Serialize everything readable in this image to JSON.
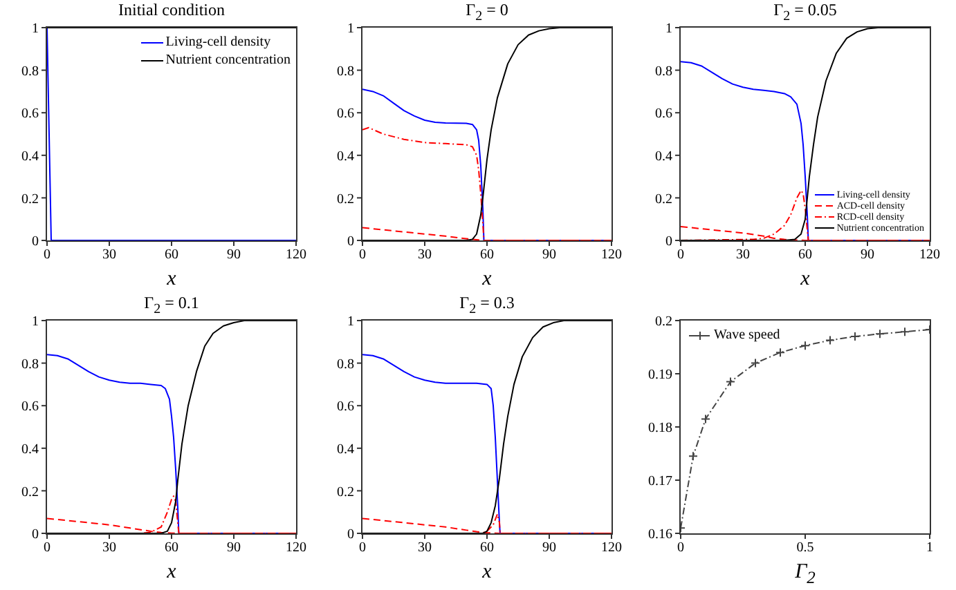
{
  "chart_data": [
    {
      "type": "line",
      "title": "Initial condition",
      "xlabel": "x",
      "xlim": [
        0,
        120
      ],
      "xticks": [
        0,
        30,
        60,
        90,
        120
      ],
      "ylim": [
        0,
        1
      ],
      "yticks": [
        0,
        0.2,
        0.4,
        0.6,
        0.8,
        1
      ],
      "legend": "top right",
      "line_style": "solid",
      "series": [
        {
          "name": "Living-cell density",
          "color": "#0000ff",
          "x": [
            0,
            1,
            2,
            120
          ],
          "values": [
            1,
            0.5,
            0,
            0
          ]
        },
        {
          "name": "Nutrient concentration",
          "color": "#000000",
          "x": [
            0,
            120
          ],
          "values": [
            1,
            1
          ]
        }
      ]
    },
    {
      "type": "line",
      "title": "Γ$_{2}$ = 0",
      "xlabel": "x",
      "xlim": [
        0,
        120
      ],
      "xticks": [
        0,
        30,
        60,
        90,
        120
      ],
      "ylim": [
        0,
        1
      ],
      "yticks": [
        0,
        0.2,
        0.4,
        0.6,
        0.8,
        1
      ],
      "series": [
        {
          "color": "#0000ff",
          "line_style": "solid",
          "x": [
            0,
            5,
            10,
            15,
            20,
            25,
            30,
            35,
            40,
            45,
            50,
            53,
            55,
            56,
            57,
            58,
            58.5,
            120
          ],
          "values": [
            0.71,
            0.7,
            0.68,
            0.645,
            0.61,
            0.585,
            0.565,
            0.555,
            0.552,
            0.551,
            0.55,
            0.545,
            0.52,
            0.47,
            0.35,
            0.15,
            0,
            0
          ]
        },
        {
          "color": "#ff0000",
          "line_style": "dashed",
          "x": [
            0,
            10,
            20,
            30,
            40,
            50,
            55,
            58,
            120
          ],
          "values": [
            0.06,
            0.05,
            0.04,
            0.03,
            0.02,
            0.008,
            0.003,
            0,
            0
          ]
        },
        {
          "color": "#ff0000",
          "line_style": "dotted",
          "x": [
            0,
            3,
            10,
            20,
            30,
            40,
            50,
            53,
            55,
            56,
            57,
            58,
            58.5,
            120
          ],
          "values": [
            0.52,
            0.53,
            0.5,
            0.475,
            0.46,
            0.455,
            0.45,
            0.44,
            0.4,
            0.33,
            0.22,
            0.08,
            0,
            0
          ]
        },
        {
          "color": "#000000",
          "line_style": "solid",
          "x": [
            0,
            50,
            53,
            55,
            57,
            58,
            60,
            62,
            65,
            70,
            75,
            80,
            85,
            90,
            95,
            120
          ],
          "values": [
            0,
            0,
            0.005,
            0.03,
            0.12,
            0.2,
            0.38,
            0.52,
            0.67,
            0.83,
            0.92,
            0.965,
            0.985,
            0.995,
            1,
            1
          ]
        }
      ]
    },
    {
      "type": "line",
      "title": "Γ$_{2}$ = 0.05",
      "xlabel": "x",
      "xlim": [
        0,
        120
      ],
      "xticks": [
        0,
        30,
        60,
        90,
        120
      ],
      "ylim": [
        0,
        1
      ],
      "yticks": [
        0,
        0.2,
        0.4,
        0.6,
        0.8,
        1
      ],
      "legend": "bottom right",
      "series": [
        {
          "name": "Living-cell density",
          "color": "#0000ff",
          "line_style": "solid",
          "x": [
            0,
            5,
            10,
            15,
            20,
            25,
            30,
            35,
            40,
            45,
            50,
            53,
            56,
            58,
            59,
            60,
            61,
            61.5,
            120
          ],
          "values": [
            0.84,
            0.835,
            0.82,
            0.79,
            0.76,
            0.735,
            0.72,
            0.71,
            0.705,
            0.7,
            0.69,
            0.675,
            0.64,
            0.55,
            0.45,
            0.3,
            0.12,
            0,
            0
          ]
        },
        {
          "name": "ACD-cell density",
          "color": "#ff0000",
          "line_style": "dashed",
          "x": [
            0,
            10,
            20,
            30,
            40,
            45,
            50,
            55,
            60,
            120
          ],
          "values": [
            0.065,
            0.055,
            0.045,
            0.035,
            0.02,
            0.01,
            0.005,
            0.002,
            0,
            0
          ]
        },
        {
          "name": "RCD-cell density",
          "color": "#ff0000",
          "line_style": "dotted",
          "x": [
            0,
            35,
            40,
            45,
            50,
            53,
            56,
            58,
            59,
            60,
            61,
            61.5,
            120
          ],
          "values": [
            0,
            0.005,
            0.01,
            0.03,
            0.07,
            0.12,
            0.2,
            0.235,
            0.22,
            0.15,
            0.05,
            0,
            0
          ]
        },
        {
          "name": "Nutrient concentration",
          "color": "#000000",
          "line_style": "solid",
          "x": [
            0,
            50,
            55,
            58,
            60,
            61,
            62,
            64,
            66,
            70,
            75,
            80,
            85,
            90,
            95,
            120
          ],
          "values": [
            0,
            0,
            0.005,
            0.03,
            0.1,
            0.2,
            0.3,
            0.45,
            0.58,
            0.75,
            0.88,
            0.95,
            0.98,
            0.995,
            1,
            1
          ]
        }
      ]
    },
    {
      "type": "line",
      "title": "Γ$_{2}$ = 0.1",
      "xlabel": "x",
      "xlim": [
        0,
        120
      ],
      "xticks": [
        0,
        30,
        60,
        90,
        120
      ],
      "ylim": [
        0,
        1
      ],
      "yticks": [
        0,
        0.2,
        0.4,
        0.6,
        0.8,
        1
      ],
      "series": [
        {
          "color": "#0000ff",
          "line_style": "solid",
          "x": [
            0,
            5,
            10,
            15,
            20,
            25,
            30,
            35,
            40,
            45,
            50,
            55,
            57,
            59,
            60,
            61,
            62,
            63,
            63.5,
            120
          ],
          "values": [
            0.84,
            0.835,
            0.82,
            0.79,
            0.76,
            0.735,
            0.72,
            0.71,
            0.705,
            0.705,
            0.7,
            0.695,
            0.68,
            0.63,
            0.55,
            0.45,
            0.3,
            0.12,
            0,
            0
          ]
        },
        {
          "color": "#ff0000",
          "line_style": "dashed",
          "x": [
            0,
            10,
            20,
            30,
            40,
            50,
            55,
            60,
            63,
            120
          ],
          "values": [
            0.07,
            0.06,
            0.05,
            0.04,
            0.025,
            0.01,
            0.004,
            0.001,
            0,
            0
          ]
        },
        {
          "color": "#ff0000",
          "line_style": "dotted",
          "x": [
            0,
            45,
            50,
            55,
            58,
            60,
            61,
            62,
            63,
            63.5,
            120
          ],
          "values": [
            0,
            0,
            0.005,
            0.03,
            0.1,
            0.16,
            0.175,
            0.15,
            0.05,
            0,
            0
          ]
        },
        {
          "color": "#000000",
          "line_style": "solid",
          "x": [
            0,
            55,
            58,
            60,
            62,
            63,
            65,
            68,
            72,
            76,
            80,
            85,
            90,
            95,
            120
          ],
          "values": [
            0,
            0,
            0.01,
            0.05,
            0.15,
            0.25,
            0.42,
            0.6,
            0.76,
            0.88,
            0.94,
            0.975,
            0.99,
            1,
            1
          ]
        }
      ]
    },
    {
      "type": "line",
      "title": "Γ$_{2}$ = 0.3",
      "xlabel": "x",
      "xlim": [
        0,
        120
      ],
      "xticks": [
        0,
        30,
        60,
        90,
        120
      ],
      "ylim": [
        0,
        1
      ],
      "yticks": [
        0,
        0.2,
        0.4,
        0.6,
        0.8,
        1
      ],
      "series": [
        {
          "color": "#0000ff",
          "line_style": "solid",
          "x": [
            0,
            5,
            10,
            15,
            20,
            25,
            30,
            35,
            40,
            45,
            50,
            55,
            60,
            62,
            63,
            64,
            65,
            66,
            66.3,
            120
          ],
          "values": [
            0.84,
            0.835,
            0.82,
            0.79,
            0.76,
            0.735,
            0.72,
            0.71,
            0.705,
            0.705,
            0.705,
            0.705,
            0.7,
            0.68,
            0.6,
            0.45,
            0.25,
            0.05,
            0,
            0
          ]
        },
        {
          "color": "#ff0000",
          "line_style": "dashed",
          "x": [
            0,
            10,
            20,
            30,
            40,
            50,
            55,
            60,
            66,
            120
          ],
          "values": [
            0.07,
            0.06,
            0.05,
            0.04,
            0.03,
            0.015,
            0.008,
            0.003,
            0,
            0
          ]
        },
        {
          "color": "#ff0000",
          "line_style": "dotted",
          "x": [
            0,
            58,
            60,
            63,
            65,
            66,
            66.3,
            120
          ],
          "values": [
            0,
            0,
            0.01,
            0.04,
            0.09,
            0.05,
            0,
            0
          ]
        },
        {
          "color": "#000000",
          "line_style": "solid",
          "x": [
            0,
            58,
            60,
            62,
            64,
            66,
            68,
            70,
            73,
            77,
            82,
            87,
            92,
            97,
            120
          ],
          "values": [
            0,
            0,
            0.01,
            0.05,
            0.13,
            0.26,
            0.42,
            0.55,
            0.7,
            0.83,
            0.92,
            0.97,
            0.99,
            1,
            1
          ]
        }
      ]
    },
    {
      "type": "line",
      "xlabel": "Γ$_{2}$",
      "xlim": [
        0,
        1
      ],
      "xticks": [
        0,
        0.5,
        1
      ],
      "ylim": [
        0.16,
        0.2
      ],
      "yticks": [
        0.16,
        0.17,
        0.18,
        0.19,
        0.2
      ],
      "legend": "top left",
      "marker": "cross",
      "line_style": "dotted",
      "series": [
        {
          "name": "Wave speed",
          "color": "#444444",
          "x": [
            0,
            0.05,
            0.1,
            0.2,
            0.3,
            0.4,
            0.5,
            0.6,
            0.7,
            0.8,
            0.9,
            1
          ],
          "values": [
            0.161,
            0.1745,
            0.1815,
            0.1885,
            0.192,
            0.194,
            0.1953,
            0.1963,
            0.197,
            0.1975,
            0.1979,
            0.1983
          ]
        }
      ]
    }
  ]
}
